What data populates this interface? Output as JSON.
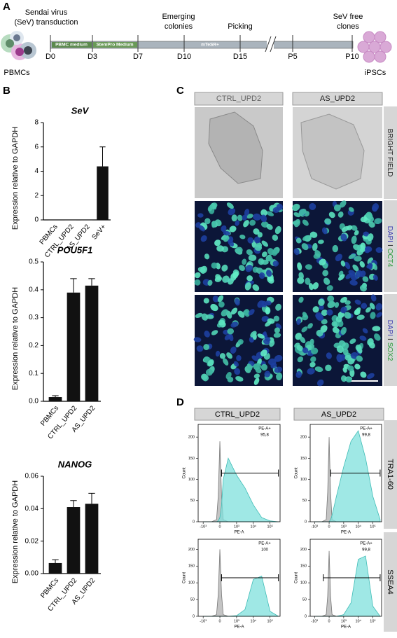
{
  "panel_labels": [
    "A",
    "B",
    "C",
    "D"
  ],
  "timeline": {
    "events": [
      {
        "lines": [
          "Sendai virus",
          "(SeV) transduction"
        ]
      },
      {
        "lines": [
          "Emerging",
          "colonies"
        ]
      },
      {
        "lines": [
          "Picking"
        ]
      },
      {
        "lines": [
          "SeV free",
          "clones"
        ]
      }
    ],
    "days": [
      "D0",
      "D3",
      "D7",
      "D10",
      "D15",
      "P5",
      "P10"
    ],
    "media": [
      "PBMC medium",
      "StemPro Medium",
      "mTeSR+"
    ],
    "cells": [
      "PBMCs",
      "iPSCs"
    ]
  },
  "chart_data": [
    {
      "type": "bar",
      "title": "SeV",
      "ylabel": "Expression relative to GAPDH",
      "categories": [
        "PBMCs",
        "CTRL_UPD2",
        "AS_UPD2",
        "SeV+"
      ],
      "values": [
        0,
        0,
        0,
        4.4
      ],
      "errors": [
        0,
        0,
        0,
        1.6
      ],
      "color": "#111111",
      "ylim": [
        0,
        8
      ],
      "yticks": [
        0,
        2,
        4,
        6,
        8
      ]
    },
    {
      "type": "bar",
      "title": "POU5F1",
      "ylabel": "Expression relative to GAPDH",
      "categories": [
        "PBMCs",
        "CTRL_UPD2",
        "AS_UPD2"
      ],
      "values": [
        0.015,
        0.39,
        0.415
      ],
      "errors": [
        0.005,
        0.05,
        0.025
      ],
      "color": "#111111",
      "ylim": [
        0,
        0.5
      ],
      "yticks": [
        {
          "value": 0,
          "label": "0.0"
        },
        0.1,
        0.2,
        0.3,
        0.4,
        0.5
      ]
    },
    {
      "type": "bar",
      "title": "NANOG",
      "ylabel": "Expression relative to GAPDH",
      "categories": [
        "PBMCs",
        "CTRL_UPD2",
        "AS_UPD2"
      ],
      "values": [
        0.0065,
        0.041,
        0.043
      ],
      "errors": [
        0.002,
        0.004,
        0.0065
      ],
      "color": "#111111",
      "ylim": [
        0,
        0.06
      ],
      "yticks": [
        {
          "value": 0,
          "label": "0.00"
        },
        0.02,
        0.04,
        0.06
      ]
    },
    {
      "type": "flow",
      "xlabel": "PE-A",
      "ylabel": "Count",
      "gate_label": "PE-A+",
      "gate_value": "95,8",
      "gate_range": [
        0.1,
        3.5
      ],
      "x": [
        -1,
        -0.5,
        -0.2,
        -0.1,
        0,
        0.1,
        0.2,
        0.5,
        1,
        1.5,
        2,
        2.5,
        3,
        3.5
      ],
      "series": [
        {
          "color": "#b0b0b0",
          "values": [
            0,
            0,
            5,
            60,
            190,
            60,
            5,
            0,
            0,
            0,
            0,
            0,
            0,
            0
          ]
        },
        {
          "color": "#7fe0dc",
          "values": [
            0,
            0,
            0,
            2,
            10,
            40,
            100,
            150,
            110,
            80,
            40,
            10,
            2,
            0
          ]
        }
      ],
      "xlim": [
        -1.3,
        3.6
      ],
      "ylim": [
        0,
        230
      ],
      "yticks": [
        0,
        50,
        100,
        150,
        200
      ],
      "xticks": [
        {
          "value": -1,
          "label": "-10³"
        },
        0,
        {
          "value": 1,
          "label": "10³"
        },
        {
          "value": 2,
          "label": "10⁴"
        },
        {
          "value": 3,
          "label": "10⁵"
        }
      ]
    },
    {
      "type": "flow",
      "xlabel": "PE-A",
      "ylabel": "Count",
      "gate_label": "PE-A+",
      "gate_value": "99,8",
      "gate_range": [
        0.1,
        3.5
      ],
      "x": [
        -1,
        -0.5,
        -0.2,
        -0.1,
        0,
        0.1,
        0.2,
        0.5,
        1,
        1.5,
        2,
        2.5,
        3,
        3.5
      ],
      "series": [
        {
          "color": "#b0b0b0",
          "values": [
            0,
            0,
            5,
            70,
            200,
            70,
            5,
            0,
            0,
            0,
            0,
            0,
            0,
            0
          ]
        },
        {
          "color": "#7fe0dc",
          "values": [
            0,
            0,
            0,
            0,
            0,
            5,
            15,
            60,
            130,
            190,
            215,
            150,
            60,
            5
          ]
        }
      ],
      "xlim": [
        -1.3,
        3.6
      ],
      "ylim": [
        0,
        230
      ],
      "yticks": [
        0,
        50,
        100,
        150,
        200
      ],
      "xticks": [
        {
          "value": -1,
          "label": "-10³"
        },
        0,
        {
          "value": 1,
          "label": "10³"
        },
        {
          "value": 2,
          "label": "10⁴"
        },
        {
          "value": 3,
          "label": "10⁵"
        }
      ]
    },
    {
      "type": "flow",
      "xlabel": "PE-A",
      "ylabel": "Count",
      "gate_label": "PE-A+",
      "gate_value": "100",
      "gate_range": [
        0.1,
        3.5
      ],
      "x": [
        -1,
        -0.5,
        -0.2,
        -0.1,
        0,
        0.1,
        0.2,
        0.5,
        1,
        1.5,
        2,
        2.5,
        3,
        3.5
      ],
      "series": [
        {
          "color": "#b0b0b0",
          "values": [
            0,
            0,
            5,
            65,
            200,
            65,
            5,
            0,
            0,
            0,
            0,
            0,
            0,
            0
          ]
        },
        {
          "color": "#7fe0dc",
          "values": [
            0,
            0,
            0,
            0,
            0,
            0,
            0,
            0,
            2,
            20,
            110,
            120,
            15,
            0
          ]
        }
      ],
      "xlim": [
        -1.3,
        3.6
      ],
      "ylim": [
        0,
        230
      ],
      "yticks": [
        0,
        50,
        100,
        150,
        200
      ],
      "xticks": [
        {
          "value": -1,
          "label": "-10³"
        },
        0,
        {
          "value": 1,
          "label": "10³"
        },
        {
          "value": 2,
          "label": "10⁴"
        },
        {
          "value": 3,
          "label": "10⁵"
        }
      ]
    },
    {
      "type": "flow",
      "xlabel": "PE-A",
      "ylabel": "Count",
      "gate_label": "PE-A+",
      "gate_value": "99,8",
      "gate_range": [
        -0.4,
        3.5
      ],
      "x": [
        -1,
        -0.5,
        -0.2,
        -0.1,
        0,
        0.1,
        0.2,
        0.5,
        1,
        1.5,
        2,
        2.5,
        3,
        3.5
      ],
      "series": [
        {
          "color": "#b0b0b0",
          "values": [
            0,
            0,
            5,
            60,
            195,
            60,
            5,
            0,
            0,
            0,
            0,
            0,
            0,
            0
          ]
        },
        {
          "color": "#7fe0dc",
          "values": [
            0,
            0,
            0,
            0,
            0,
            0,
            0,
            0,
            5,
            40,
            170,
            180,
            30,
            0
          ]
        }
      ],
      "xlim": [
        -1.3,
        3.6
      ],
      "ylim": [
        0,
        230
      ],
      "yticks": [
        0,
        50,
        100,
        150,
        200
      ],
      "xticks": [
        {
          "value": -1,
          "label": "-10³"
        },
        0,
        {
          "value": 1,
          "label": "10³"
        },
        {
          "value": 2,
          "label": "10⁴"
        },
        {
          "value": 3,
          "label": "10⁵"
        }
      ]
    }
  ],
  "microscopy": {
    "columns": [
      "CTRL_UPD2",
      "AS_UPD2"
    ],
    "rows": [
      [
        "BRIGHT FIELD"
      ],
      [
        "DAPI",
        "I",
        "OCT4"
      ],
      [
        "DAPI",
        "I",
        "SOX2"
      ]
    ]
  },
  "flow": {
    "columns": [
      "CTRL_UPD2",
      "AS_UPD2"
    ],
    "rows": [
      "TRA1-60",
      "SSEA4"
    ]
  }
}
